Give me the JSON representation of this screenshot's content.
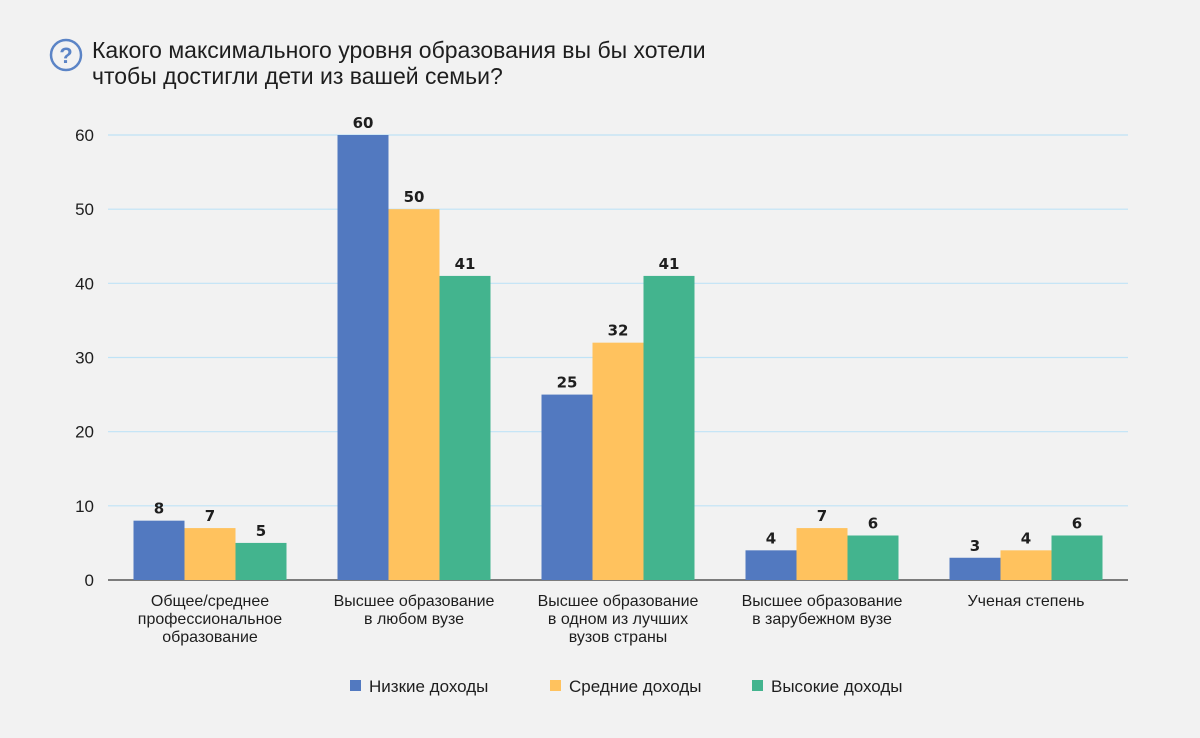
{
  "title_lines": [
    "Какого максимального уровня образования вы бы хотели",
    "чтобы достигли дети из вашей семьи?"
  ],
  "icon": {
    "name": "question-circle-icon",
    "glyph": "?",
    "color": "#5b84c6"
  },
  "colors": {
    "low": "#5279c0",
    "mid": "#ffc25e",
    "high": "#43b48e",
    "grid": "#bfe3f6",
    "axis": "#555555"
  },
  "chart_data": {
    "type": "bar",
    "categories": [
      [
        "Общее/среднее",
        "профессиональное",
        "образование"
      ],
      [
        "Высшее образование",
        "в любом вузе"
      ],
      [
        "Высшее образование",
        "в одном из лучших",
        "вузов страны"
      ],
      [
        "Высшее образование",
        "в зарубежном вузе"
      ],
      [
        "Ученая степень"
      ]
    ],
    "series": [
      {
        "name": "Низкие доходы",
        "values": [
          8,
          60,
          25,
          4,
          3
        ]
      },
      {
        "name": "Средние доходы",
        "values": [
          7,
          50,
          32,
          7,
          4
        ]
      },
      {
        "name": "Высокие доходы",
        "values": [
          5,
          41,
          41,
          6,
          6
        ]
      }
    ],
    "ylim": [
      0,
      60
    ],
    "yticks": [
      0,
      10,
      20,
      30,
      40,
      50,
      60
    ],
    "grid": true,
    "legend_position": "bottom"
  }
}
